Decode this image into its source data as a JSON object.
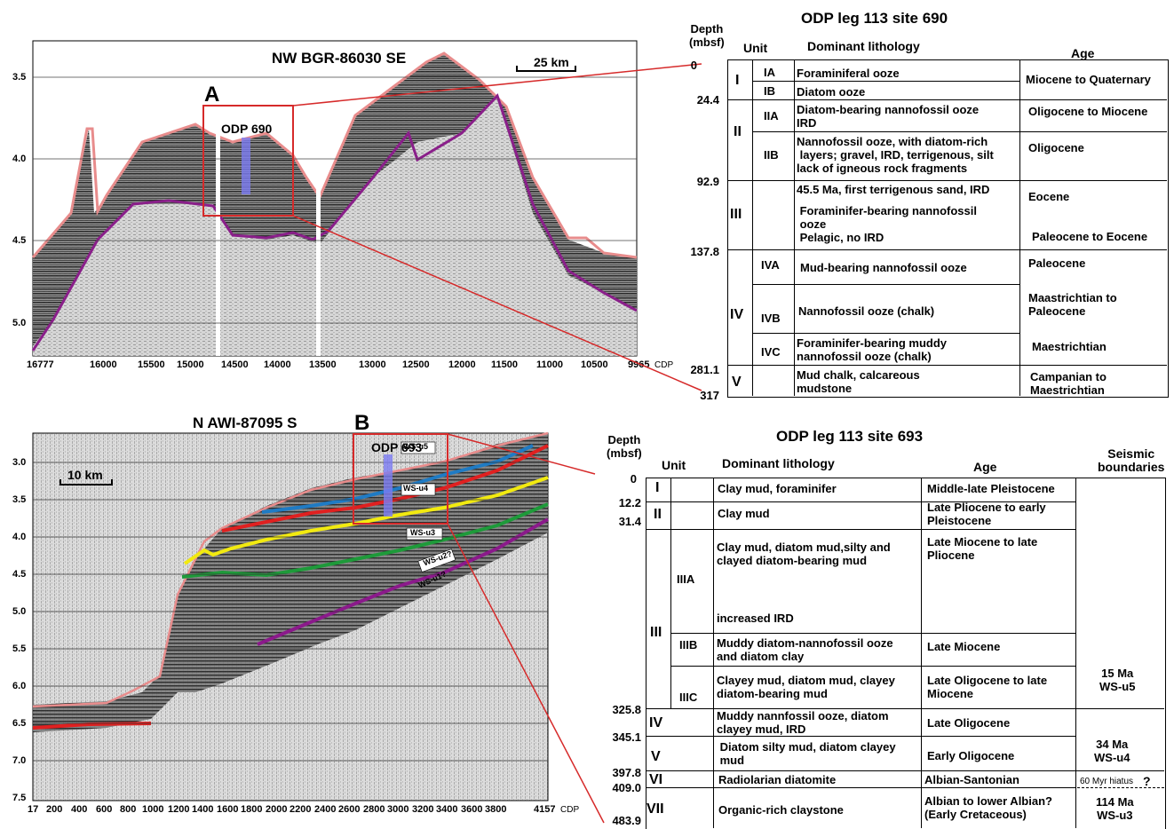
{
  "panelA": {
    "letter": "A",
    "title": "NW BGR-86030 SE",
    "scale": "25 km",
    "site": "ODP 690",
    "yticks": [
      "3.5",
      "4.0",
      "4.5",
      "5.0"
    ],
    "xticks": [
      "16777",
      "16000",
      "15500",
      "15000",
      "14500",
      "14000",
      "13500",
      "13000",
      "12500",
      "12000",
      "11500",
      "11000",
      "10500",
      "9965"
    ],
    "xunit": "CDP"
  },
  "panelB": {
    "letter": "B",
    "title": "N AWI-87095 S",
    "scale": "10 km",
    "site": "ODP 693",
    "yticks": [
      "3.0",
      "3.5",
      "4.0",
      "4.5",
      "5.0",
      "5.5",
      "6.0",
      "6.5",
      "7.0",
      "7.5"
    ],
    "xticks": [
      "17",
      "200",
      "400",
      "600",
      "800",
      "1000",
      "1200",
      "1400",
      "1600",
      "1800",
      "2000",
      "2200",
      "2400",
      "2600",
      "2800",
      "3000",
      "3200",
      "3400",
      "3600",
      "3800",
      "4157"
    ],
    "xunit": "CDP",
    "horizons": [
      "WS-u5",
      "WS-u4",
      "WS-u3",
      "WS-u2?",
      "WS-u1?"
    ],
    "colors": {
      "u5": "#1f7bc4",
      "u4": "#e02020",
      "u3": "#f2ea10",
      "u2": "#1e9a3a",
      "u1": "#8b1a8b"
    }
  },
  "table690": {
    "title": "ODP leg 113 site 690",
    "h_depth": "Depth\n(mbsf)",
    "h_unit": "Unit",
    "h_lith": "Dominant lithology",
    "h_age": "Age",
    "depths": [
      "0",
      "24.4",
      "92.9",
      "137.8",
      "281.1",
      "317"
    ],
    "units": [
      "I",
      "II",
      "III",
      "IV",
      "V"
    ],
    "subunits": [
      "IA",
      "IB",
      "IIA",
      "IIB",
      "IVA",
      "IVB",
      "IVC"
    ],
    "lith": {
      "IA": "Foraminiferal ooze",
      "IB": "Diatom ooze",
      "IIA": "Diatom-bearing nannofossil ooze\nIRD",
      "IIB": "Nannofossil ooze, with diatom-rich\n layers; gravel, IRD, terrigenous, silt\nlack of igneous rock fragments",
      "III_a": "45.5 Ma, first terrigenous sand, IRD",
      "III_b": " Foraminifer-bearing nannofossil\n ooze\n Pelagic, no IRD",
      "IVA": "Mud-bearing nannofossil ooze",
      "IVB": "Nannofossil ooze (chalk)",
      "IVC": "Foraminifer-bearing muddy\nnannofossil ooze (chalk)",
      "V": "Mud chalk, calcareous\nmudstone"
    },
    "ages": {
      "I": "Miocene to Quaternary",
      "IIA": "Oligocene to Miocene",
      "IIB": "Oligocene",
      "III_a": "Eocene",
      "III_b": "Paleocene to Eocene",
      "IVA": "Paleocene",
      "IVB": "Maastrichtian to\nPaleocene",
      "IVC": "Maestrichtian",
      "V": "Campanian to\nMaestrichtian"
    }
  },
  "table693": {
    "title": "ODP leg 113 site 693",
    "h_depth": "Depth\n(mbsf)",
    "h_unit": "Unit",
    "h_lith": "Dominant lithology",
    "h_age": "Age",
    "h_seis": "Seismic\nboundaries",
    "depths": [
      "0",
      "12.2",
      "31.4",
      "325.8",
      "345.1",
      "397.8",
      "409.0",
      "483.9"
    ],
    "units": [
      "I",
      "II",
      "III",
      "IV",
      "V",
      "VI",
      "VII"
    ],
    "subunits": [
      "IIIA",
      "IIIB",
      "IIIC"
    ],
    "lith": {
      "I": "Clay mud, foraminifer",
      "II": "Clay mud",
      "IIIA_a": "Clay mud, diatom mud,silty and\nclayed diatom-bearing mud",
      "IIIA_b": "increased IRD",
      "IIIB": "Muddy diatom-nannofossil ooze\nand diatom clay",
      "IIIC": "Clayey mud, diatom mud, clayey\ndiatom-bearing mud",
      "IV": "Muddy nannfossil ooze, diatom\nclayey mud, IRD",
      "V": " Diatom silty mud, diatom clayey\n mud",
      "VI": "Radiolarian diatomite",
      "VII": "Organic-rich claystone"
    },
    "ages": {
      "I": "Middle-late Pleistocene",
      "II": "Late Pliocene to early\nPleistocene",
      "IIIA": "Late Miocene to late\nPliocene",
      "IIIB": "Late Miocene",
      "IIIC": "Late Oligocene to late\nMiocene",
      "IV": "Late Oligocene",
      "V": "Early Oligocene",
      "VI": "Albian-Santonian",
      "VII": "Albian to lower Albian?\n(Early Cretaceous)"
    },
    "seismic": {
      "u5": "15 Ma\nWS-u5",
      "u4": "34 Ma\nWS-u4",
      "hiatus": "60 Myr hiatus",
      "hiatus_q": "?",
      "u3": "114 Ma\nWS-u3"
    }
  }
}
